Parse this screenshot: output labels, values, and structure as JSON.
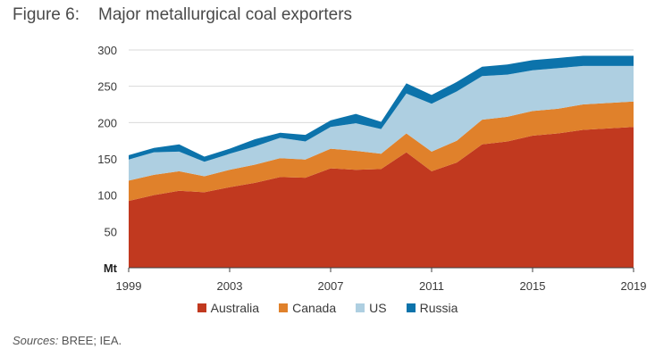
{
  "figure": {
    "number": "Figure 6:",
    "title": "Major metallurgical coal exporters"
  },
  "sources": {
    "label": "Sources:",
    "text": " BREE; IEA."
  },
  "colors": {
    "australia": "#c1391f",
    "canada": "#e0812b",
    "us": "#aecfe1",
    "russia": "#0c73ab",
    "gridline": "#d9d9d9",
    "axis": "#404040"
  },
  "chart_data": {
    "type": "area",
    "stacked": true,
    "title": "Major metallurgical coal exporters",
    "ylabel": "Mt",
    "xlabel": "",
    "ylim": [
      0,
      300
    ],
    "yticks": [
      0,
      50,
      100,
      150,
      200,
      250,
      300
    ],
    "yticklabels": [
      "",
      "50",
      "100",
      "150",
      "200",
      "250",
      "300"
    ],
    "xlim": [
      1999,
      2019
    ],
    "xticks": [
      1999,
      2003,
      2007,
      2011,
      2015,
      2019
    ],
    "xticklabels": [
      "1999",
      "2003",
      "2007",
      "2011",
      "2015",
      "2019"
    ],
    "grid": "horizontal",
    "legend_position": "bottom",
    "x": [
      1999,
      2000,
      2001,
      2002,
      2003,
      2004,
      2005,
      2006,
      2007,
      2008,
      2009,
      2010,
      2011,
      2012,
      2013,
      2014,
      2015,
      2016,
      2017,
      2018,
      2019
    ],
    "series": [
      {
        "name": "Australia",
        "color_key": "australia",
        "values": [
          92,
          100,
          106,
          104,
          111,
          117,
          125,
          124,
          137,
          135,
          136,
          159,
          133,
          145,
          170,
          174,
          182,
          185,
          190,
          192,
          194
        ]
      },
      {
        "name": "Canada",
        "color_key": "canada",
        "values": [
          28,
          28,
          27,
          22,
          24,
          25,
          26,
          25,
          27,
          26,
          21,
          26,
          27,
          30,
          34,
          34,
          34,
          34,
          35,
          35,
          35
        ]
      },
      {
        "name": "US",
        "color_key": "us",
        "values": [
          29,
          31,
          27,
          20,
          22,
          25,
          28,
          25,
          30,
          38,
          34,
          55,
          66,
          68,
          60,
          58,
          56,
          56,
          53,
          51,
          49
        ]
      },
      {
        "name": "Russia",
        "color_key": "russia",
        "values": [
          6,
          6,
          10,
          7,
          7,
          10,
          7,
          9,
          9,
          13,
          10,
          14,
          12,
          13,
          13,
          14,
          14,
          14,
          14,
          14,
          14
        ]
      }
    ]
  }
}
